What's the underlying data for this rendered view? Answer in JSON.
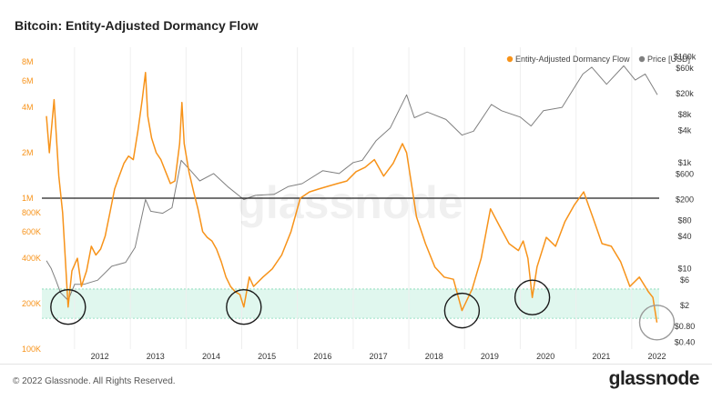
{
  "header": {
    "title": "Bitcoin: Entity-Adjusted Dormancy Flow"
  },
  "footer": {
    "copyright": "© 2022 Glassnode. All Rights Reserved.",
    "brand": "glassnode"
  },
  "watermark": "glassnode",
  "colors": {
    "dormancy": "#f7931a",
    "price": "#808080",
    "band": "#c6f0e0",
    "threshold": "#222222",
    "left_axis": "#f7931a",
    "right_axis": "#333333"
  },
  "chart_data": {
    "type": "line",
    "title": "Bitcoin: Entity-Adjusted Dormancy Flow",
    "x_axis": {
      "type": "date",
      "ticks": [
        "2012",
        "2013",
        "2014",
        "2015",
        "2016",
        "2017",
        "2018",
        "2019",
        "2020",
        "2021",
        "2022"
      ],
      "range": [
        "2011-06-01",
        "2022-06-30"
      ]
    },
    "y_left": {
      "scale": "log",
      "range": [
        100000,
        10000000
      ],
      "ticks": [
        {
          "v": 100000,
          "label": "100K"
        },
        {
          "v": 200000,
          "label": "200K"
        },
        {
          "v": 400000,
          "label": "400K"
        },
        {
          "v": 600000,
          "label": "600K"
        },
        {
          "v": 800000,
          "label": "800K"
        },
        {
          "v": 1000000,
          "label": "1M"
        },
        {
          "v": 2000000,
          "label": "2M"
        },
        {
          "v": 4000000,
          "label": "4M"
        },
        {
          "v": 6000000,
          "label": "6M"
        },
        {
          "v": 8000000,
          "label": "8M"
        }
      ]
    },
    "y_right": {
      "scale": "log",
      "range": [
        0.3,
        150000
      ],
      "ticks": [
        {
          "v": 0.4,
          "label": "$0.40"
        },
        {
          "v": 0.8,
          "label": "$0.80"
        },
        {
          "v": 2,
          "label": "$2"
        },
        {
          "v": 6,
          "label": "$6"
        },
        {
          "v": 10,
          "label": "$10"
        },
        {
          "v": 40,
          "label": "$40"
        },
        {
          "v": 80,
          "label": "$80"
        },
        {
          "v": 200,
          "label": "$200"
        },
        {
          "v": 600,
          "label": "$600"
        },
        {
          "v": 1000,
          "label": "$1k"
        },
        {
          "v": 4000,
          "label": "$4k"
        },
        {
          "v": 8000,
          "label": "$8k"
        },
        {
          "v": 20000,
          "label": "$20k"
        },
        {
          "v": 60000,
          "label": "$60k"
        },
        {
          "v": 100000,
          "label": "$100k"
        }
      ]
    },
    "legend": {
      "placement": "top-right",
      "entries": [
        "Entity-Adjusted Dormancy Flow",
        "Price [USD]"
      ]
    },
    "threshold_line": 1000000,
    "band": [
      160000,
      250000
    ],
    "highlight_dates": [
      "2011-11-20",
      "2015-01-15",
      "2018-12-15",
      "2020-03-20",
      "2022-06-15"
    ],
    "series": [
      {
        "name": "Entity-Adjusted Dormancy Flow",
        "axis": "left",
        "x": [
          "2011-07-01",
          "2011-07-20",
          "2011-08-20",
          "2011-09-20",
          "2011-10-15",
          "2011-11-20",
          "2011-12-15",
          "2012-01-20",
          "2012-02-15",
          "2012-03-20",
          "2012-04-20",
          "2012-05-20",
          "2012-06-20",
          "2012-07-20",
          "2012-08-20",
          "2012-09-20",
          "2012-10-20",
          "2012-11-20",
          "2012-12-20",
          "2013-01-20",
          "2013-02-20",
          "2013-03-20",
          "2013-04-10",
          "2013-04-25",
          "2013-05-20",
          "2013-06-20",
          "2013-07-20",
          "2013-08-20",
          "2013-09-20",
          "2013-10-20",
          "2013-11-20",
          "2013-12-05",
          "2013-12-20",
          "2014-01-20",
          "2014-02-20",
          "2014-03-20",
          "2014-04-20",
          "2014-05-20",
          "2014-06-20",
          "2014-07-20",
          "2014-08-20",
          "2014-09-20",
          "2014-10-20",
          "2014-11-20",
          "2014-12-20",
          "2015-01-15",
          "2015-02-20",
          "2015-03-20",
          "2015-05-20",
          "2015-07-20",
          "2015-09-20",
          "2015-11-20",
          "2016-01-20",
          "2016-03-20",
          "2016-05-20",
          "2016-07-20",
          "2016-09-20",
          "2016-11-20",
          "2017-01-20",
          "2017-03-20",
          "2017-05-20",
          "2017-07-20",
          "2017-09-20",
          "2017-11-20",
          "2017-12-17",
          "2018-01-20",
          "2018-02-20",
          "2018-04-20",
          "2018-06-20",
          "2018-08-20",
          "2018-10-20",
          "2018-12-15",
          "2019-02-20",
          "2019-04-20",
          "2019-06-20",
          "2019-08-20",
          "2019-10-20",
          "2019-12-20",
          "2020-01-20",
          "2020-02-20",
          "2020-03-20",
          "2020-04-20",
          "2020-06-20",
          "2020-08-20",
          "2020-10-20",
          "2020-12-20",
          "2021-02-20",
          "2021-04-20",
          "2021-06-20",
          "2021-08-20",
          "2021-10-20",
          "2021-12-20",
          "2022-02-20",
          "2022-04-20",
          "2022-05-20",
          "2022-06-15"
        ],
        "values": [
          3500000,
          2000000,
          4500000,
          1400000,
          800000,
          190000,
          330000,
          400000,
          260000,
          330000,
          480000,
          420000,
          460000,
          560000,
          800000,
          1150000,
          1400000,
          1700000,
          1900000,
          1800000,
          2800000,
          4500000,
          6800000,
          3500000,
          2500000,
          2000000,
          1800000,
          1500000,
          1250000,
          1300000,
          2300000,
          4300000,
          2300000,
          1500000,
          1100000,
          850000,
          600000,
          550000,
          520000,
          460000,
          380000,
          300000,
          260000,
          240000,
          230000,
          190000,
          300000,
          260000,
          300000,
          340000,
          420000,
          600000,
          1000000,
          1100000,
          1150000,
          1200000,
          1250000,
          1300000,
          1500000,
          1600000,
          1800000,
          1400000,
          1700000,
          2300000,
          2000000,
          1200000,
          750000,
          500000,
          350000,
          300000,
          290000,
          180000,
          250000,
          400000,
          850000,
          650000,
          500000,
          450000,
          520000,
          400000,
          220000,
          350000,
          550000,
          480000,
          700000,
          900000,
          1100000,
          750000,
          500000,
          480000,
          380000,
          260000,
          300000,
          240000,
          220000,
          150000
        ]
      },
      {
        "name": "Price [USD]",
        "axis": "right",
        "x": [
          "2011-07-01",
          "2011-08-01",
          "2011-09-01",
          "2011-10-01",
          "2011-11-20",
          "2012-01-01",
          "2012-03-01",
          "2012-06-01",
          "2012-09-01",
          "2012-12-01",
          "2013-02-01",
          "2013-04-10",
          "2013-05-15",
          "2013-08-01",
          "2013-10-01",
          "2013-11-30",
          "2014-02-01",
          "2014-04-01",
          "2014-07-01",
          "2014-10-01",
          "2015-01-15",
          "2015-04-01",
          "2015-08-01",
          "2015-11-01",
          "2016-02-01",
          "2016-06-15",
          "2016-10-01",
          "2017-01-01",
          "2017-03-01",
          "2017-06-01",
          "2017-09-01",
          "2017-12-17",
          "2018-02-06",
          "2018-05-01",
          "2018-09-01",
          "2018-12-15",
          "2019-03-01",
          "2019-06-26",
          "2019-09-01",
          "2020-01-01",
          "2020-03-12",
          "2020-06-01",
          "2020-10-01",
          "2020-12-31",
          "2021-02-15",
          "2021-04-14",
          "2021-07-20",
          "2021-11-10",
          "2022-01-24",
          "2022-03-30",
          "2022-05-12",
          "2022-06-18"
        ],
        "values": [
          14,
          10,
          6,
          3.5,
          2.5,
          5,
          5,
          6,
          11,
          13,
          25,
          200,
          120,
          110,
          140,
          1100,
          700,
          450,
          620,
          350,
          200,
          240,
          250,
          350,
          400,
          700,
          620,
          1000,
          1100,
          2600,
          4500,
          19000,
          7000,
          9000,
          6500,
          3300,
          3900,
          12500,
          9500,
          7200,
          4900,
          9500,
          11000,
          29000,
          47000,
          63000,
          30000,
          67000,
          36000,
          47000,
          29000,
          19000
        ]
      }
    ]
  }
}
